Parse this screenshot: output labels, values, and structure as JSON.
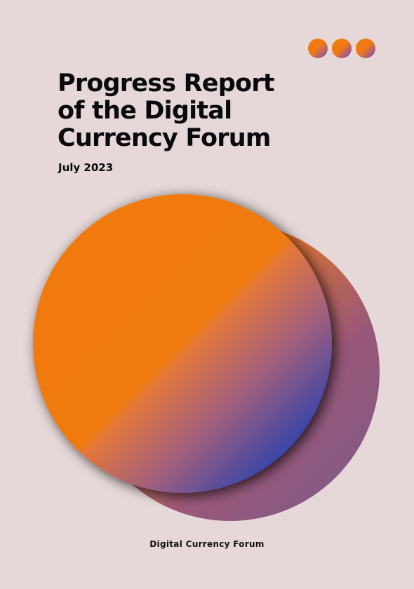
{
  "cover": {
    "title": "Progress Report\nof the Digital\nCurrency Forum",
    "date": "July 2023",
    "publisher": "Digital Currency Forum"
  },
  "decoration": {
    "dot_count": 3,
    "colors": {
      "background": "#e6d8d8",
      "orange": "#f07a10",
      "purple": "#5a4aa8",
      "mauve": "#8a5a82"
    }
  }
}
